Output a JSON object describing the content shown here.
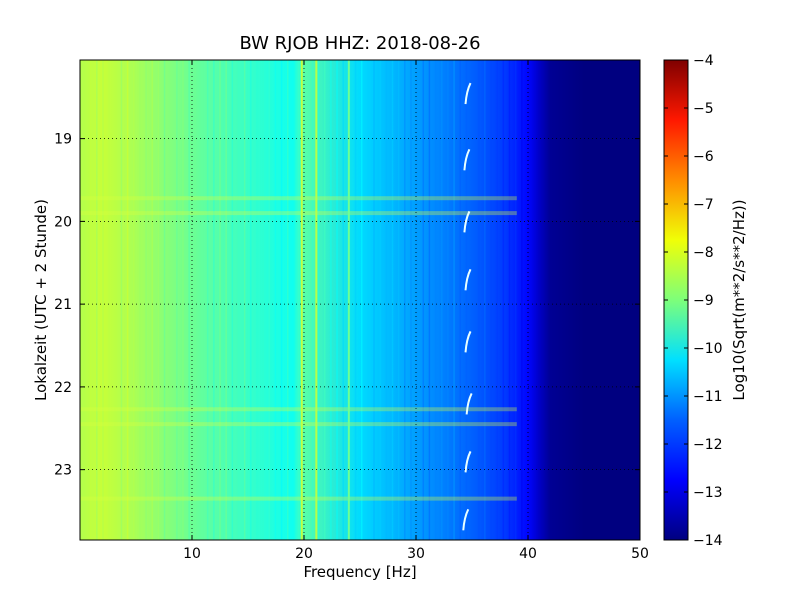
{
  "chart_data": {
    "type": "heatmap",
    "title": "BW RJOB HHZ: 2018-08-26",
    "xlabel": "Frequency [Hz]",
    "ylabel": "Lokalzeit (UTC + 2 Stunde)",
    "xlim": [
      0,
      50
    ],
    "ylim": [
      18.05,
      23.85
    ],
    "y_inverted": true,
    "x_ticks": [
      10,
      20,
      30,
      40,
      50
    ],
    "y_ticks": [
      19,
      20,
      21,
      22,
      23
    ],
    "grid": true,
    "colormap": "jet",
    "colorbar": {
      "label": "Log10(Sqrt(m**2/s**2/Hz))",
      "range": [
        -14,
        -4
      ],
      "ticks": [
        -4,
        -5,
        -6,
        -7,
        -8,
        -9,
        -10,
        -11,
        -12,
        -13,
        -14
      ]
    },
    "spectral_profile": {
      "frequency_hz": [
        0,
        2,
        5,
        10,
        15,
        19,
        20,
        25,
        30,
        35,
        38,
        40,
        41,
        42,
        45,
        50
      ],
      "log10_amplitude": [
        -8.5,
        -8.3,
        -8.6,
        -9.2,
        -9.7,
        -10.1,
        -9.4,
        -10.6,
        -11.2,
        -11.8,
        -12.2,
        -12.7,
        -13.3,
        -13.8,
        -14.0,
        -14.0
      ]
    },
    "narrowband_lines_hz": [
      19.8,
      21.1,
      24.0
    ],
    "broadband_time_bands": [
      19.72,
      19.9,
      22.27,
      22.45,
      23.35
    ],
    "transient_marks": [
      {
        "time": 18.45,
        "frequency_hz": 34.6
      },
      {
        "time": 19.25,
        "frequency_hz": 34.5
      },
      {
        "time": 20.0,
        "frequency_hz": 34.5
      },
      {
        "time": 20.7,
        "frequency_hz": 34.6
      },
      {
        "time": 21.45,
        "frequency_hz": 34.6
      },
      {
        "time": 22.2,
        "frequency_hz": 34.7
      },
      {
        "time": 22.9,
        "frequency_hz": 34.6
      },
      {
        "time": 23.6,
        "frequency_hz": 34.4
      }
    ]
  }
}
